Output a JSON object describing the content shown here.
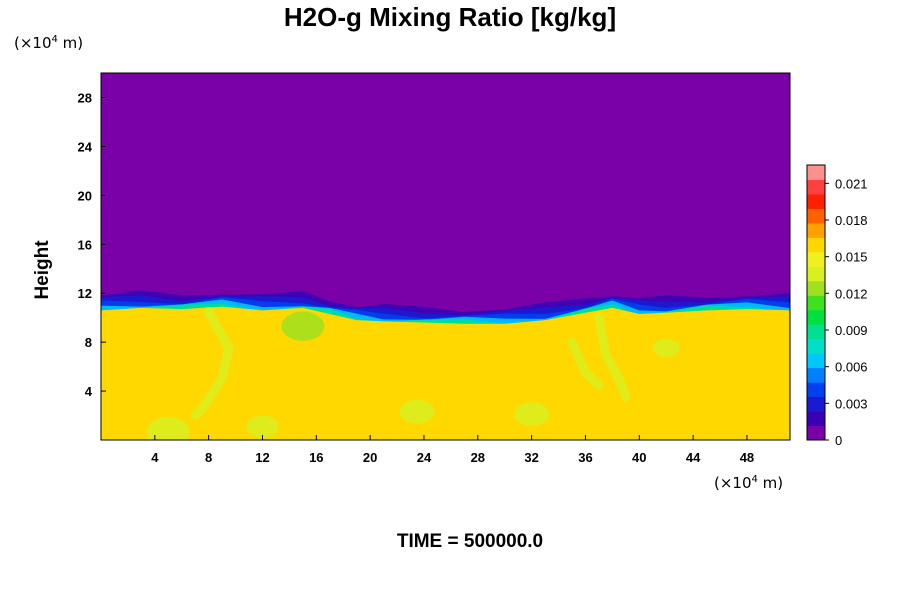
{
  "chart_data": {
    "type": "heatmap",
    "title": "H2O-g Mixing Ratio [kg/kg]",
    "ylabel": "Height",
    "xlabel": "",
    "y_unit": {
      "prefix": "(×10",
      "exp": "4",
      "suffix": " m)"
    },
    "x_unit": {
      "prefix": "(×10",
      "exp": "4",
      "suffix": " m)"
    },
    "xlim": [
      0,
      51.2
    ],
    "ylim": [
      0,
      30
    ],
    "x_ticks": [
      4,
      8,
      12,
      16,
      20,
      24,
      28,
      32,
      36,
      40,
      44,
      48
    ],
    "y_ticks": [
      4,
      8,
      12,
      16,
      20,
      24,
      28
    ],
    "colorbar": {
      "range": [
        0,
        0.0225
      ],
      "ticks": [
        0,
        0.003,
        0.006,
        0.009,
        0.012,
        0.015,
        0.018,
        0.021
      ],
      "tick_labels": [
        "0",
        "0.003",
        "0.006",
        "0.009",
        "0.012",
        "0.015",
        "0.018",
        "0.021"
      ],
      "palette": [
        "#7a00a8",
        "#3a00b4",
        "#1a1ad0",
        "#0040f0",
        "#0080ff",
        "#00c8ff",
        "#00e0c8",
        "#00e090",
        "#00e040",
        "#40e020",
        "#a0e020",
        "#d8f020",
        "#f0f020",
        "#ffd800",
        "#ffa000",
        "#ff6000",
        "#ff2000",
        "#ff4040",
        "#ff9090"
      ]
    },
    "fields": {
      "upper_value": 0.0,
      "lower_value": 0.0155,
      "boundary_height": 10.8,
      "boundary_profile": [
        [
          0,
          11.6
        ],
        [
          3,
          11.8
        ],
        [
          6,
          11.7
        ],
        [
          9,
          11.9
        ],
        [
          12,
          11.6
        ],
        [
          15,
          11.8
        ],
        [
          17,
          11.3
        ],
        [
          19,
          10.8
        ],
        [
          21,
          10.7
        ],
        [
          24,
          10.6
        ],
        [
          27,
          10.5
        ],
        [
          30,
          10.5
        ],
        [
          33,
          10.8
        ],
        [
          36,
          11.4
        ],
        [
          38,
          11.8
        ],
        [
          40,
          11.3
        ],
        [
          42,
          11.4
        ],
        [
          45,
          11.6
        ],
        [
          48,
          11.7
        ],
        [
          51.2,
          11.6
        ]
      ],
      "patches": [
        {
          "kind": "plume",
          "points": [
            [
              8,
              10.5
            ],
            [
              9.5,
              7.5
            ],
            [
              9,
              5
            ],
            [
              7.5,
              2.5
            ],
            [
              7,
              2
            ]
          ],
          "value": 0.0135
        },
        {
          "kind": "plume",
          "points": [
            [
              37,
              10
            ],
            [
              37.5,
              7
            ],
            [
              38.5,
              5
            ],
            [
              39,
              3.5
            ]
          ],
          "value": 0.0135
        },
        {
          "kind": "plume",
          "points": [
            [
              35,
              8
            ],
            [
              36,
              5.5
            ],
            [
              37,
              4.5
            ]
          ],
          "value": 0.0135
        },
        {
          "kind": "blob",
          "center": [
            23.5,
            2.3
          ],
          "r": 1.3,
          "value": 0.014
        },
        {
          "kind": "blob",
          "center": [
            5,
            0.7
          ],
          "r": 1.6,
          "value": 0.014
        },
        {
          "kind": "blob",
          "center": [
            12,
            1.1
          ],
          "r": 1.2,
          "value": 0.014
        },
        {
          "kind": "blob",
          "center": [
            32,
            2.1
          ],
          "r": 1.3,
          "value": 0.014
        },
        {
          "kind": "blob",
          "center": [
            42,
            7.5
          ],
          "r": 1.0,
          "value": 0.0135
        },
        {
          "kind": "blob",
          "center": [
            15,
            9.3
          ],
          "r": 1.6,
          "value": 0.0125
        }
      ]
    }
  },
  "footer": {
    "text": "TIME = 500000.0"
  }
}
